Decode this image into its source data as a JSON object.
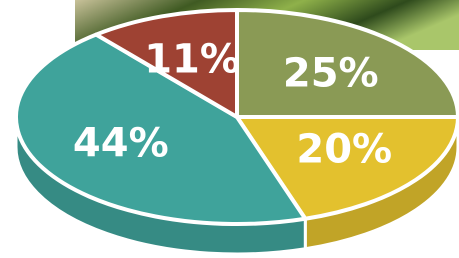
{
  "chart_data": {
    "type": "pie",
    "values": [
      25,
      20,
      44,
      11
    ],
    "value_labels": [
      "25%",
      "20%",
      "44%",
      "11%"
    ],
    "colors": [
      "#8a9a55",
      "#e3c12e",
      "#3fa39b",
      "#9e4233"
    ]
  }
}
